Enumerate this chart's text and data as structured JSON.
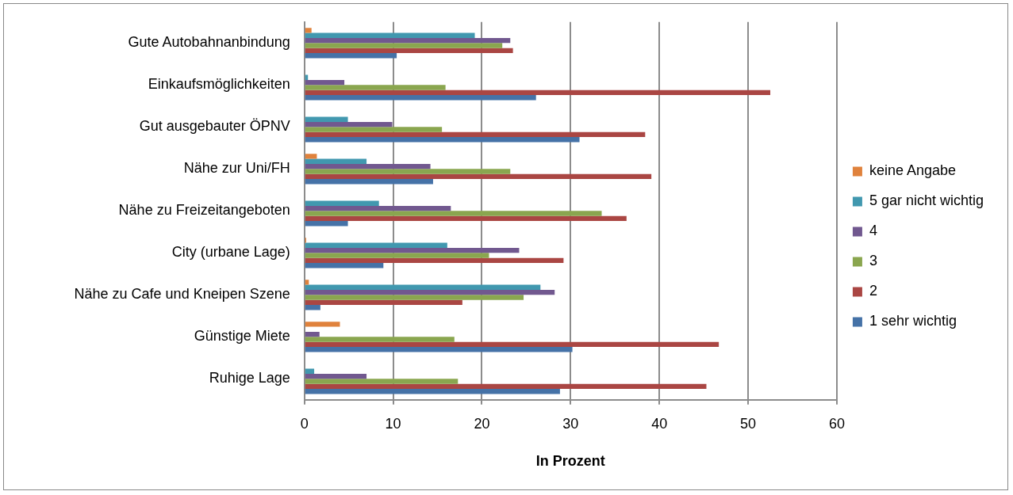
{
  "chart_data": {
    "type": "bar",
    "orientation": "horizontal",
    "xlabel": "In Prozent",
    "categories": [
      "Gute Autobahnanbindung",
      "Einkaufsmöglichkeiten",
      "Gut ausgebauter ÖPNV",
      "Nähe zur Uni/FH",
      "Nähe zu Freizeitangeboten",
      "City (urbane Lage)",
      "Nähe zu Cafe und Kneipen Szene",
      "Günstige Miete",
      "Ruhige Lage"
    ],
    "series": [
      {
        "name": "keine Angabe",
        "color": "#e0823c",
        "values": [
          0.8,
          null,
          null,
          1.4,
          null,
          0.2,
          0.5,
          4.0,
          null
        ]
      },
      {
        "name": "5 gar nicht wichtig",
        "color": "#4198af",
        "values": [
          19.2,
          0.4,
          4.9,
          7.0,
          8.4,
          16.1,
          26.6,
          null,
          1.1
        ]
      },
      {
        "name": "4",
        "color": "#71588f",
        "values": [
          23.2,
          4.5,
          9.9,
          14.2,
          16.5,
          24.2,
          28.2,
          1.7,
          7.0
        ]
      },
      {
        "name": "3",
        "color": "#8aa64f",
        "values": [
          22.3,
          15.9,
          15.5,
          23.2,
          33.5,
          20.8,
          24.7,
          16.9,
          17.3
        ]
      },
      {
        "name": "2",
        "color": "#aa4643",
        "values": [
          23.5,
          52.5,
          38.4,
          39.1,
          36.3,
          29.2,
          17.8,
          46.7,
          45.3
        ]
      },
      {
        "name": "1 sehr wichtig",
        "color": "#4572a7",
        "values": [
          10.4,
          26.1,
          31.0,
          14.5,
          4.9,
          8.9,
          1.8,
          30.2,
          28.8
        ]
      }
    ],
    "xlim": [
      0,
      60
    ],
    "xticks": [
      0,
      10,
      20,
      30,
      40,
      50,
      60
    ],
    "grid": "x",
    "legend": "right"
  }
}
